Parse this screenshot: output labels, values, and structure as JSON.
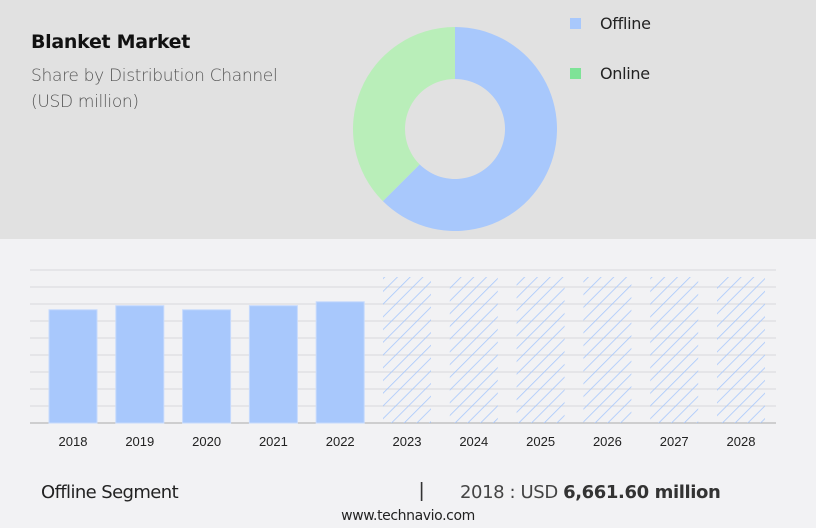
{
  "header": {
    "title": "Blanket Market",
    "subtitle_line1": "Share by Distribution Channel",
    "subtitle_line2": "(USD million)"
  },
  "legend": [
    {
      "label": "Offline",
      "color": "#a8c8fc"
    },
    {
      "label": "Online",
      "color": "#7ee397"
    }
  ],
  "colors": {
    "offline": "#a8c8fc",
    "online_donut": "#b9eeb9",
    "online_legend": "#7ee397",
    "top_bg": "#e1e1e1",
    "bottom_bg": "#f2f2f4",
    "gridline": "#d8d8dc",
    "axis": "#aaaaaa"
  },
  "footer": {
    "segment_label": "Offline Segment",
    "separator": "|",
    "year_prefix": "2018 : USD ",
    "value": "6,661.60 million",
    "website": "www.technavio.com"
  },
  "chart_data": [
    {
      "type": "pie",
      "subtype": "donut",
      "title": "Blanket Market Share by Distribution Channel (USD million)",
      "categories": [
        "Offline",
        "Online"
      ],
      "values": [
        62.5,
        37.5
      ],
      "unit": "% share (estimated from arc)",
      "legend_position": "right"
    },
    {
      "type": "bar",
      "title": "Offline Segment",
      "categories": [
        "2018",
        "2019",
        "2020",
        "2021",
        "2022",
        "2023",
        "2024",
        "2025",
        "2026",
        "2027",
        "2028"
      ],
      "values": [
        6661.6,
        6900,
        6660,
        6900,
        7130,
        null,
        null,
        null,
        null,
        null,
        null
      ],
      "forecast_categories": [
        "2023",
        "2024",
        "2025",
        "2026",
        "2027",
        "2028"
      ],
      "forecast_style": "hatched, full height (values not shown)",
      "xlabel": "",
      "ylabel": "USD million",
      "ylim": [
        0,
        9000
      ],
      "grid": true,
      "gridline_count": 9,
      "annotation": "2018 : USD 6,661.60 million"
    }
  ]
}
